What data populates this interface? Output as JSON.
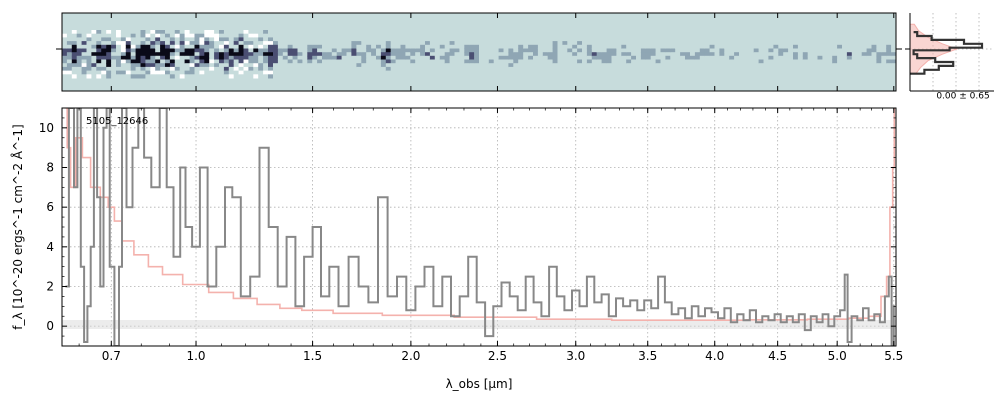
{
  "chart_data": [
    {
      "type": "heatmap",
      "panel": "2D spectrum",
      "colormap": [
        "#ffffff",
        "#c7dcdc",
        "#8fa6b4",
        "#4a4e72",
        "#0a0a18"
      ],
      "background_color": "#c7dcdc",
      "x_scale": "sqrt-like (shared with 1D spectrum)"
    },
    {
      "type": "area",
      "panel": "spatial profile",
      "annotation": "0.00 ± 0.65",
      "profile_line_color": "#333333",
      "profile_fill_color": "#f4b2ad",
      "profile": [
        {
          "y": -0.95,
          "v": 0.2
        },
        {
          "y": -0.8,
          "v": 0.4
        },
        {
          "y": -0.65,
          "v": 0.6
        },
        {
          "y": -0.5,
          "v": 0.35
        },
        {
          "y": -0.35,
          "v": 0.1
        },
        {
          "y": -0.2,
          "v": 0.05
        },
        {
          "y": -0.05,
          "v": 0.55
        },
        {
          "y": 0.05,
          "v": 1.0
        },
        {
          "y": 0.2,
          "v": 0.75
        },
        {
          "y": 0.35,
          "v": 0.3
        },
        {
          "y": 0.5,
          "v": 0.1
        },
        {
          "y": 0.65,
          "v": 0.05
        }
      ],
      "model_profile": [
        {
          "y": -0.95,
          "v": 0.08
        },
        {
          "y": -0.7,
          "v": 0.15
        },
        {
          "y": -0.45,
          "v": 0.25
        },
        {
          "y": -0.2,
          "v": 0.45
        },
        {
          "y": 0.0,
          "v": 0.65
        },
        {
          "y": 0.2,
          "v": 0.45
        },
        {
          "y": 0.45,
          "v": 0.25
        },
        {
          "y": 0.7,
          "v": 0.12
        },
        {
          "y": 0.95,
          "v": 0.06
        }
      ]
    },
    {
      "type": "line",
      "panel": "1D spectrum",
      "label": "5105_12646",
      "xlabel": "λ_obs [μm]",
      "ylabel": "f_λ [10^-20 ergs^-1 cm^-2 Å^-1]",
      "xlim": [
        0.55,
        5.52
      ],
      "ylim": [
        -1.0,
        11.0
      ],
      "x_ticks": [
        0.7,
        1.0,
        1.5,
        2.0,
        2.5,
        3.0,
        3.5,
        4.0,
        4.5,
        5.0,
        5.5
      ],
      "x_tick_labels": [
        "0.7",
        "1.0",
        "1.5",
        "2.0",
        "2.5",
        "3.0",
        "3.5",
        "4.0",
        "4.5",
        "5.0",
        "5.5"
      ],
      "y_ticks": [
        0,
        2,
        4,
        6,
        8,
        10
      ],
      "y_tick_labels": [
        "0",
        "2",
        "4",
        "6",
        "8",
        "10"
      ],
      "grid": true,
      "series": [
        {
          "color": "#888888",
          "style": "step",
          "points": [
            [
              0.56,
              2.0
            ],
            [
              0.58,
              11.0
            ],
            [
              0.59,
              7.0
            ],
            [
              0.6,
              11.0
            ],
            [
              0.61,
              3.0
            ],
            [
              0.62,
              -0.8
            ],
            [
              0.63,
              1.0
            ],
            [
              0.64,
              4.0
            ],
            [
              0.65,
              11.0
            ],
            [
              0.66,
              6.5
            ],
            [
              0.67,
              2.0
            ],
            [
              0.68,
              10.0
            ],
            [
              0.69,
              11.0
            ],
            [
              0.7,
              3.0
            ],
            [
              0.72,
              -1.0
            ],
            [
              0.73,
              3.0
            ],
            [
              0.74,
              11.0
            ],
            [
              0.76,
              6.0
            ],
            [
              0.78,
              9.0
            ],
            [
              0.8,
              11.0
            ],
            [
              0.82,
              8.5
            ],
            [
              0.85,
              7.0
            ],
            [
              0.88,
              11.0
            ],
            [
              0.9,
              7.0
            ],
            [
              0.93,
              3.5
            ],
            [
              0.95,
              8.0
            ],
            [
              0.97,
              5.0
            ],
            [
              1.0,
              4.0
            ],
            [
              1.03,
              8.0
            ],
            [
              1.06,
              2.0
            ],
            [
              1.1,
              4.0
            ],
            [
              1.13,
              7.0
            ],
            [
              1.16,
              6.5
            ],
            [
              1.2,
              1.5
            ],
            [
              1.24,
              2.5
            ],
            [
              1.28,
              9.0
            ],
            [
              1.32,
              5.0
            ],
            [
              1.36,
              2.0
            ],
            [
              1.4,
              4.5
            ],
            [
              1.44,
              1.0
            ],
            [
              1.48,
              3.5
            ],
            [
              1.52,
              5.0
            ],
            [
              1.56,
              1.5
            ],
            [
              1.6,
              3.0
            ],
            [
              1.65,
              1.0
            ],
            [
              1.7,
              3.5
            ],
            [
              1.75,
              2.0
            ],
            [
              1.8,
              1.2
            ],
            [
              1.85,
              6.5
            ],
            [
              1.9,
              1.5
            ],
            [
              1.95,
              2.5
            ],
            [
              2.0,
              0.8
            ],
            [
              2.05,
              2.0
            ],
            [
              2.1,
              3.0
            ],
            [
              2.15,
              1.0
            ],
            [
              2.2,
              2.5
            ],
            [
              2.25,
              0.5
            ],
            [
              2.3,
              1.5
            ],
            [
              2.35,
              3.5
            ],
            [
              2.4,
              1.2
            ],
            [
              2.45,
              -0.5
            ],
            [
              2.5,
              1.0
            ],
            [
              2.55,
              2.2
            ],
            [
              2.6,
              1.5
            ],
            [
              2.65,
              0.8
            ],
            [
              2.7,
              2.5
            ],
            [
              2.75,
              1.2
            ],
            [
              2.8,
              0.5
            ],
            [
              2.85,
              3.0
            ],
            [
              2.9,
              1.5
            ],
            [
              2.95,
              0.8
            ],
            [
              3.0,
              1.8
            ],
            [
              3.05,
              1.0
            ],
            [
              3.1,
              2.5
            ],
            [
              3.15,
              1.2
            ],
            [
              3.2,
              1.6
            ],
            [
              3.25,
              0.5
            ],
            [
              3.3,
              1.4
            ],
            [
              3.35,
              1.0
            ],
            [
              3.4,
              1.3
            ],
            [
              3.45,
              0.8
            ],
            [
              3.5,
              1.3
            ],
            [
              3.55,
              0.9
            ],
            [
              3.6,
              2.5
            ],
            [
              3.65,
              1.2
            ],
            [
              3.7,
              0.6
            ],
            [
              3.75,
              0.9
            ],
            [
              3.8,
              0.4
            ],
            [
              3.85,
              1.0
            ],
            [
              3.9,
              0.5
            ],
            [
              3.95,
              0.9
            ],
            [
              4.0,
              0.7
            ],
            [
              4.05,
              0.4
            ],
            [
              4.1,
              0.9
            ],
            [
              4.15,
              0.2
            ],
            [
              4.2,
              0.6
            ],
            [
              4.25,
              0.3
            ],
            [
              4.3,
              0.8
            ],
            [
              4.35,
              0.2
            ],
            [
              4.4,
              0.5
            ],
            [
              4.45,
              0.3
            ],
            [
              4.5,
              0.6
            ],
            [
              4.55,
              0.2
            ],
            [
              4.6,
              0.5
            ],
            [
              4.65,
              0.2
            ],
            [
              4.7,
              0.6
            ],
            [
              4.75,
              -0.2
            ],
            [
              4.8,
              0.5
            ],
            [
              4.85,
              0.2
            ],
            [
              4.9,
              0.6
            ],
            [
              4.95,
              0.0
            ],
            [
              5.0,
              0.5
            ],
            [
              5.05,
              0.8
            ],
            [
              5.08,
              2.6
            ],
            [
              5.1,
              -0.8
            ],
            [
              5.15,
              0.5
            ],
            [
              5.2,
              0.3
            ],
            [
              5.25,
              0.9
            ],
            [
              5.3,
              0.3
            ],
            [
              5.35,
              0.6
            ],
            [
              5.4,
              0.2
            ],
            [
              5.44,
              1.5
            ],
            [
              5.47,
              2.5
            ],
            [
              5.49,
              -1.0
            ],
            [
              5.51,
              1.0
            ]
          ]
        },
        {
          "color": "#f4b2ad",
          "style": "step",
          "points": [
            [
              0.56,
              11.0
            ],
            [
              0.57,
              9.0
            ],
            [
              0.58,
              7.0
            ],
            [
              0.6,
              9.5
            ],
            [
              0.62,
              8.5
            ],
            [
              0.65,
              7.0
            ],
            [
              0.68,
              6.5
            ],
            [
              0.7,
              6.0
            ],
            [
              0.72,
              5.3
            ],
            [
              0.75,
              4.3
            ],
            [
              0.8,
              3.6
            ],
            [
              0.85,
              3.0
            ],
            [
              0.9,
              2.6
            ],
            [
              1.0,
              2.1
            ],
            [
              1.1,
              1.7
            ],
            [
              1.2,
              1.4
            ],
            [
              1.3,
              1.1
            ],
            [
              1.4,
              0.9
            ],
            [
              1.5,
              0.8
            ],
            [
              1.7,
              0.65
            ],
            [
              2.0,
              0.55
            ],
            [
              2.5,
              0.45
            ],
            [
              3.0,
              0.35
            ],
            [
              3.5,
              0.3
            ],
            [
              4.0,
              0.3
            ],
            [
              4.5,
              0.32
            ],
            [
              5.0,
              0.35
            ],
            [
              5.2,
              0.4
            ],
            [
              5.35,
              0.5
            ],
            [
              5.42,
              1.5
            ],
            [
              5.45,
              2.5
            ],
            [
              5.48,
              6.0
            ],
            [
              5.5,
              8.0
            ],
            [
              5.51,
              11.0
            ]
          ]
        }
      ]
    }
  ]
}
